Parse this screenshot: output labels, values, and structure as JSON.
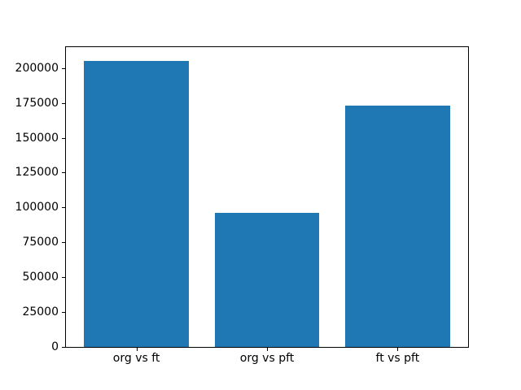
{
  "chart_data": {
    "type": "bar",
    "categories": [
      "org vs ft",
      "org vs pft",
      "ft vs pft"
    ],
    "values": [
      205000,
      96000,
      173000
    ],
    "title": "",
    "xlabel": "",
    "ylabel": "",
    "ylim": [
      0,
      215000
    ],
    "yticks": [
      0,
      25000,
      50000,
      75000,
      100000,
      125000,
      150000,
      175000,
      200000
    ],
    "bar_color": "#1f77b4",
    "axis_color": "#000000",
    "background_color": "#ffffff",
    "grid": false,
    "legend": null
  }
}
